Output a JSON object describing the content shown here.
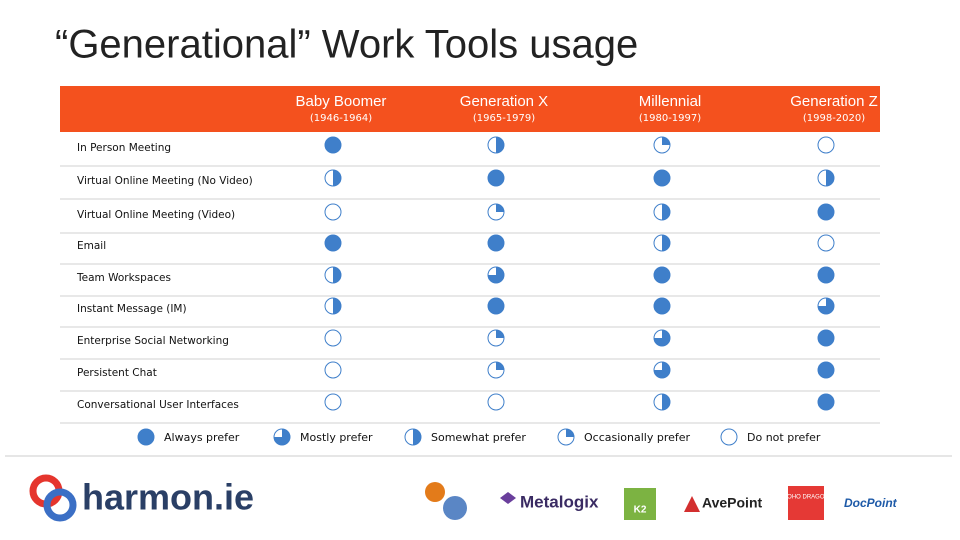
{
  "title": "“Generational” Work Tools usage",
  "columns": [
    {
      "name": "Baby Boomer",
      "years": "(1946-1964)"
    },
    {
      "name": "Generation X",
      "years": "(1965-1979)"
    },
    {
      "name": "Millennial",
      "years": "(1980-1997)"
    },
    {
      "name": "Generation Z",
      "years": "(1998-2020)"
    }
  ],
  "rows": [
    {
      "label": "In Person Meeting",
      "levels": [
        1,
        0.5,
        0.25,
        0
      ]
    },
    {
      "label": "Virtual Online Meeting (No Video)",
      "levels": [
        0.5,
        1,
        1,
        0.5
      ]
    },
    {
      "label": "Virtual Online Meeting (Video)",
      "levels": [
        0,
        0.25,
        0.5,
        1
      ]
    },
    {
      "label": "Email",
      "levels": [
        1,
        1,
        0.5,
        0
      ]
    },
    {
      "label": "Team Workspaces",
      "levels": [
        0.5,
        0.75,
        1,
        1
      ]
    },
    {
      "label": "Instant Message (IM)",
      "levels": [
        0.5,
        1,
        1,
        0.75
      ]
    },
    {
      "label": "Enterprise Social Networking",
      "levels": [
        0,
        0.25,
        0.75,
        1
      ]
    },
    {
      "label": "Persistent Chat",
      "levels": [
        0,
        0.25,
        0.75,
        1
      ]
    },
    {
      "label": "Conversational User Interfaces",
      "levels": [
        0,
        0,
        0.5,
        1
      ]
    }
  ],
  "legend": [
    {
      "label": "Always prefer",
      "level": 1
    },
    {
      "label": "Mostly prefer",
      "level": 0.75
    },
    {
      "label": "Somewhat prefer",
      "level": 0.5
    },
    {
      "label": "Occasionally prefer",
      "level": 0.25
    },
    {
      "label": "Do not prefer",
      "level": 0
    }
  ],
  "logos": {
    "main": "harmon.ie",
    "partners": [
      "Metalogix",
      "K2",
      "AvePoint",
      "SOHO DRAGON",
      "DocPoint"
    ]
  }
}
